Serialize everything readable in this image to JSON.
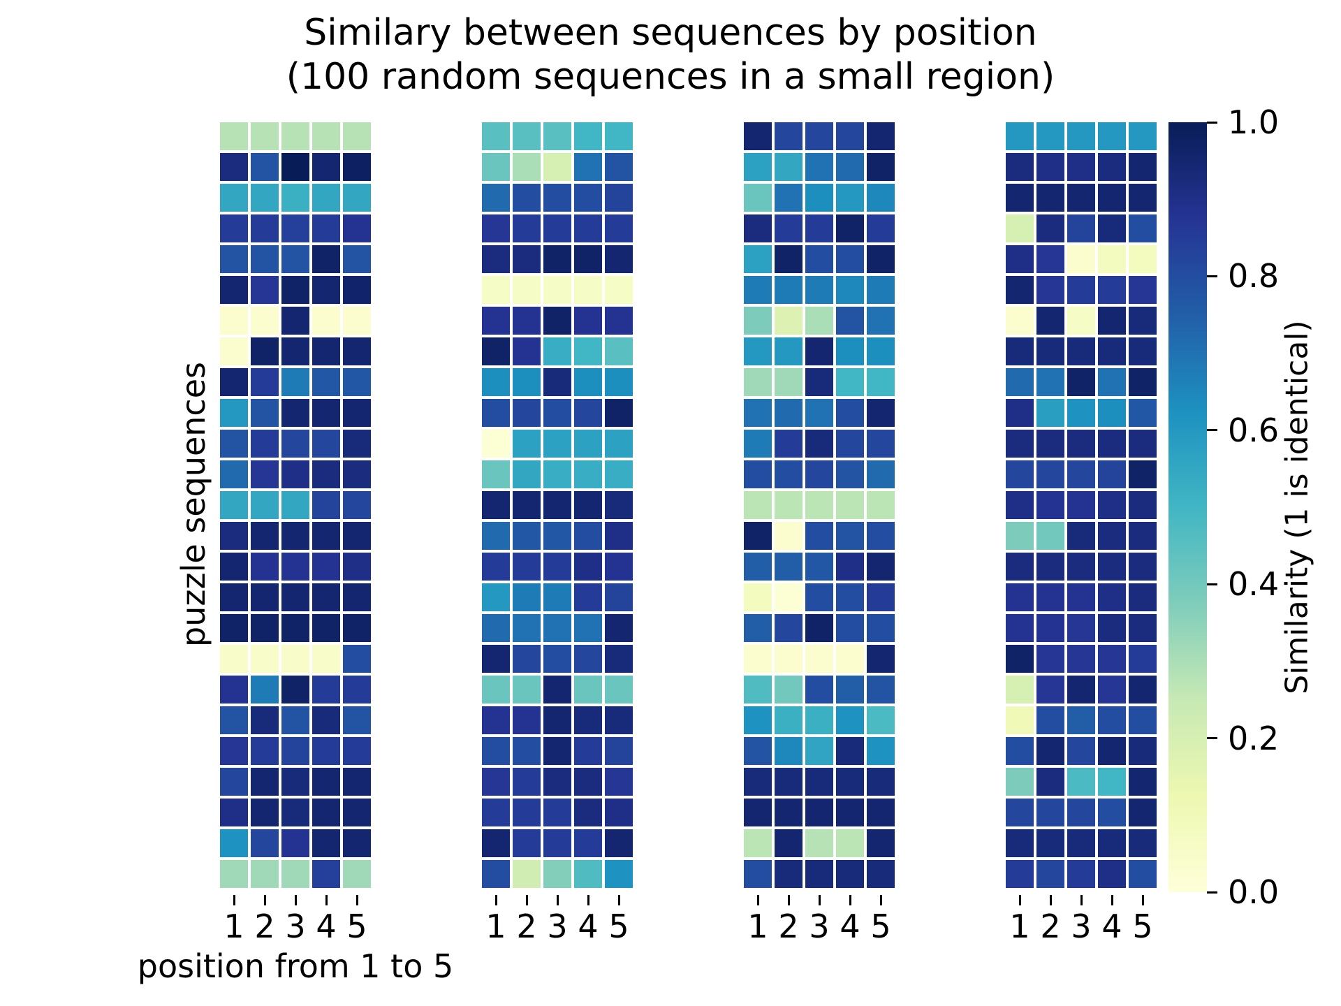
{
  "title": {
    "line1": "Similary between sequences by position",
    "line2": "(100 random sequences in a small region)"
  },
  "axes": {
    "x_label": "position from 1 to 5",
    "y_label": "puzzle sequences",
    "x_ticks": [
      "1",
      "2",
      "3",
      "4",
      "5"
    ]
  },
  "colorbar": {
    "label": "Similarity (1 is identical)",
    "tick_labels": [
      "1.0",
      "0.8",
      "0.6",
      "0.4",
      "0.2",
      "0.0"
    ],
    "tick_values": [
      1.0,
      0.8,
      0.6,
      0.4,
      0.2,
      0.0
    ]
  },
  "chart_data": {
    "type": "heatmap",
    "n_panels": 4,
    "rows": 25,
    "cols": 5,
    "x_categories": [
      1,
      2,
      3,
      4,
      5
    ],
    "vmin": 0,
    "vmax": 1,
    "grid": false,
    "cell_gap_color": "#ffffff",
    "colormap": {
      "name": "YlGnBu",
      "stops": [
        [
          0.0,
          "#ffffd9"
        ],
        [
          0.125,
          "#edf8b1"
        ],
        [
          0.25,
          "#c7e9b4"
        ],
        [
          0.375,
          "#7fcdbb"
        ],
        [
          0.5,
          "#41b6c4"
        ],
        [
          0.625,
          "#1d91c0"
        ],
        [
          0.75,
          "#225ea8"
        ],
        [
          0.875,
          "#253494"
        ],
        [
          1.0,
          "#081d58"
        ]
      ]
    },
    "panels": [
      {
        "name": "panel-1",
        "values": [
          [
            0.28,
            0.28,
            0.28,
            0.28,
            0.28
          ],
          [
            0.92,
            0.78,
            1.0,
            0.95,
            0.98
          ],
          [
            0.55,
            0.55,
            0.52,
            0.55,
            0.55
          ],
          [
            0.85,
            0.85,
            0.84,
            0.85,
            0.88
          ],
          [
            0.78,
            0.78,
            0.78,
            0.97,
            0.78
          ],
          [
            0.95,
            0.87,
            0.97,
            0.95,
            0.96
          ],
          [
            0.03,
            0.03,
            0.95,
            0.03,
            0.03
          ],
          [
            0.03,
            0.97,
            0.95,
            0.95,
            0.95
          ],
          [
            0.95,
            0.85,
            0.68,
            0.77,
            0.77
          ],
          [
            0.6,
            0.78,
            0.95,
            0.95,
            0.95
          ],
          [
            0.78,
            0.85,
            0.82,
            0.82,
            0.93
          ],
          [
            0.72,
            0.87,
            0.9,
            0.92,
            0.92
          ],
          [
            0.55,
            0.55,
            0.55,
            0.83,
            0.82
          ],
          [
            0.92,
            0.95,
            0.95,
            0.95,
            0.95
          ],
          [
            0.95,
            0.88,
            0.88,
            0.88,
            0.9
          ],
          [
            0.95,
            0.95,
            0.95,
            0.95,
            0.95
          ],
          [
            0.97,
            0.97,
            0.97,
            0.97,
            0.97
          ],
          [
            0.05,
            0.05,
            0.05,
            0.05,
            0.8
          ],
          [
            0.88,
            0.68,
            0.97,
            0.85,
            0.85
          ],
          [
            0.78,
            0.93,
            0.78,
            0.93,
            0.78
          ],
          [
            0.87,
            0.85,
            0.83,
            0.85,
            0.85
          ],
          [
            0.82,
            0.95,
            0.93,
            0.95,
            0.95
          ],
          [
            0.9,
            0.95,
            0.93,
            0.95,
            0.95
          ],
          [
            0.62,
            0.82,
            0.88,
            0.95,
            0.95
          ],
          [
            0.32,
            0.32,
            0.32,
            0.84,
            0.32
          ]
        ]
      },
      {
        "name": "panel-2",
        "values": [
          [
            0.45,
            0.45,
            0.45,
            0.5,
            0.5
          ],
          [
            0.42,
            0.3,
            0.2,
            0.7,
            0.78
          ],
          [
            0.72,
            0.8,
            0.8,
            0.8,
            0.83
          ],
          [
            0.87,
            0.85,
            0.85,
            0.85,
            0.85
          ],
          [
            0.92,
            0.92,
            0.97,
            0.97,
            0.95
          ],
          [
            0.06,
            0.06,
            0.06,
            0.06,
            0.06
          ],
          [
            0.88,
            0.88,
            0.97,
            0.88,
            0.88
          ],
          [
            0.97,
            0.88,
            0.53,
            0.5,
            0.45
          ],
          [
            0.63,
            0.63,
            0.93,
            0.63,
            0.63
          ],
          [
            0.8,
            0.82,
            0.8,
            0.82,
            0.97
          ],
          [
            0.02,
            0.57,
            0.57,
            0.57,
            0.57
          ],
          [
            0.42,
            0.55,
            0.53,
            0.53,
            0.53
          ],
          [
            0.95,
            0.95,
            0.95,
            0.95,
            0.93
          ],
          [
            0.72,
            0.77,
            0.77,
            0.8,
            0.9
          ],
          [
            0.85,
            0.85,
            0.85,
            0.9,
            0.88
          ],
          [
            0.6,
            0.68,
            0.68,
            0.85,
            0.83
          ],
          [
            0.72,
            0.7,
            0.7,
            0.7,
            0.95
          ],
          [
            0.95,
            0.82,
            0.8,
            0.82,
            0.93
          ],
          [
            0.42,
            0.42,
            0.95,
            0.42,
            0.42
          ],
          [
            0.88,
            0.88,
            0.95,
            0.93,
            0.93
          ],
          [
            0.8,
            0.8,
            0.95,
            0.85,
            0.83
          ],
          [
            0.87,
            0.85,
            0.92,
            0.92,
            0.87
          ],
          [
            0.85,
            0.85,
            0.85,
            0.92,
            0.9
          ],
          [
            0.95,
            0.85,
            0.85,
            0.85,
            0.95
          ],
          [
            0.8,
            0.22,
            0.37,
            0.47,
            0.62
          ]
        ]
      },
      {
        "name": "panel-3",
        "values": [
          [
            0.95,
            0.82,
            0.82,
            0.82,
            0.95
          ],
          [
            0.57,
            0.55,
            0.7,
            0.72,
            0.97
          ],
          [
            0.42,
            0.7,
            0.63,
            0.6,
            0.65
          ],
          [
            0.92,
            0.85,
            0.85,
            0.97,
            0.85
          ],
          [
            0.57,
            0.97,
            0.8,
            0.8,
            0.97
          ],
          [
            0.68,
            0.68,
            0.68,
            0.65,
            0.68
          ],
          [
            0.38,
            0.18,
            0.3,
            0.78,
            0.7
          ],
          [
            0.6,
            0.6,
            0.95,
            0.63,
            0.63
          ],
          [
            0.32,
            0.32,
            0.93,
            0.5,
            0.5
          ],
          [
            0.7,
            0.72,
            0.7,
            0.8,
            0.95
          ],
          [
            0.68,
            0.85,
            0.93,
            0.82,
            0.82
          ],
          [
            0.8,
            0.8,
            0.82,
            0.78,
            0.72
          ],
          [
            0.27,
            0.27,
            0.27,
            0.27,
            0.27
          ],
          [
            0.97,
            0.03,
            0.8,
            0.78,
            0.8
          ],
          [
            0.75,
            0.75,
            0.77,
            0.9,
            0.95
          ],
          [
            0.08,
            0.02,
            0.8,
            0.8,
            0.85
          ],
          [
            0.75,
            0.82,
            0.97,
            0.8,
            0.8
          ],
          [
            0.03,
            0.03,
            0.03,
            0.03,
            0.95
          ],
          [
            0.47,
            0.4,
            0.8,
            0.75,
            0.78
          ],
          [
            0.62,
            0.52,
            0.52,
            0.62,
            0.48
          ],
          [
            0.78,
            0.65,
            0.56,
            0.93,
            0.62
          ],
          [
            0.93,
            0.93,
            0.93,
            0.93,
            0.93
          ],
          [
            0.95,
            0.95,
            0.95,
            0.95,
            0.95
          ],
          [
            0.27,
            0.95,
            0.28,
            0.27,
            0.95
          ],
          [
            0.8,
            0.93,
            0.93,
            0.93,
            0.93
          ]
        ]
      },
      {
        "name": "panel-4",
        "values": [
          [
            0.6,
            0.6,
            0.6,
            0.6,
            0.6
          ],
          [
            0.92,
            0.9,
            0.9,
            0.92,
            0.95
          ],
          [
            0.95,
            0.95,
            0.95,
            0.95,
            0.95
          ],
          [
            0.2,
            0.92,
            0.83,
            0.93,
            0.8
          ],
          [
            0.9,
            0.87,
            0.03,
            0.08,
            0.08
          ],
          [
            0.95,
            0.87,
            0.85,
            0.85,
            0.87
          ],
          [
            0.03,
            0.95,
            0.06,
            0.95,
            0.93
          ],
          [
            0.93,
            0.93,
            0.93,
            0.93,
            0.93
          ],
          [
            0.72,
            0.7,
            0.97,
            0.7,
            0.97
          ],
          [
            0.9,
            0.58,
            0.62,
            0.63,
            0.77
          ],
          [
            0.92,
            0.92,
            0.92,
            0.92,
            0.92
          ],
          [
            0.82,
            0.82,
            0.82,
            0.83,
            0.97
          ],
          [
            0.9,
            0.88,
            0.88,
            0.9,
            0.92
          ],
          [
            0.38,
            0.4,
            0.93,
            0.92,
            0.92
          ],
          [
            0.92,
            0.92,
            0.92,
            0.92,
            0.92
          ],
          [
            0.88,
            0.88,
            0.88,
            0.9,
            0.92
          ],
          [
            0.88,
            0.88,
            0.87,
            0.92,
            0.92
          ],
          [
            0.97,
            0.87,
            0.87,
            0.87,
            0.85
          ],
          [
            0.2,
            0.87,
            0.95,
            0.87,
            0.95
          ],
          [
            0.1,
            0.8,
            0.75,
            0.8,
            0.8
          ],
          [
            0.8,
            0.95,
            0.82,
            0.95,
            0.93
          ],
          [
            0.38,
            0.92,
            0.48,
            0.5,
            0.95
          ],
          [
            0.82,
            0.82,
            0.82,
            0.8,
            0.95
          ],
          [
            0.93,
            0.93,
            0.93,
            0.93,
            0.93
          ],
          [
            0.85,
            0.82,
            0.85,
            0.9,
            0.8
          ]
        ]
      }
    ]
  }
}
